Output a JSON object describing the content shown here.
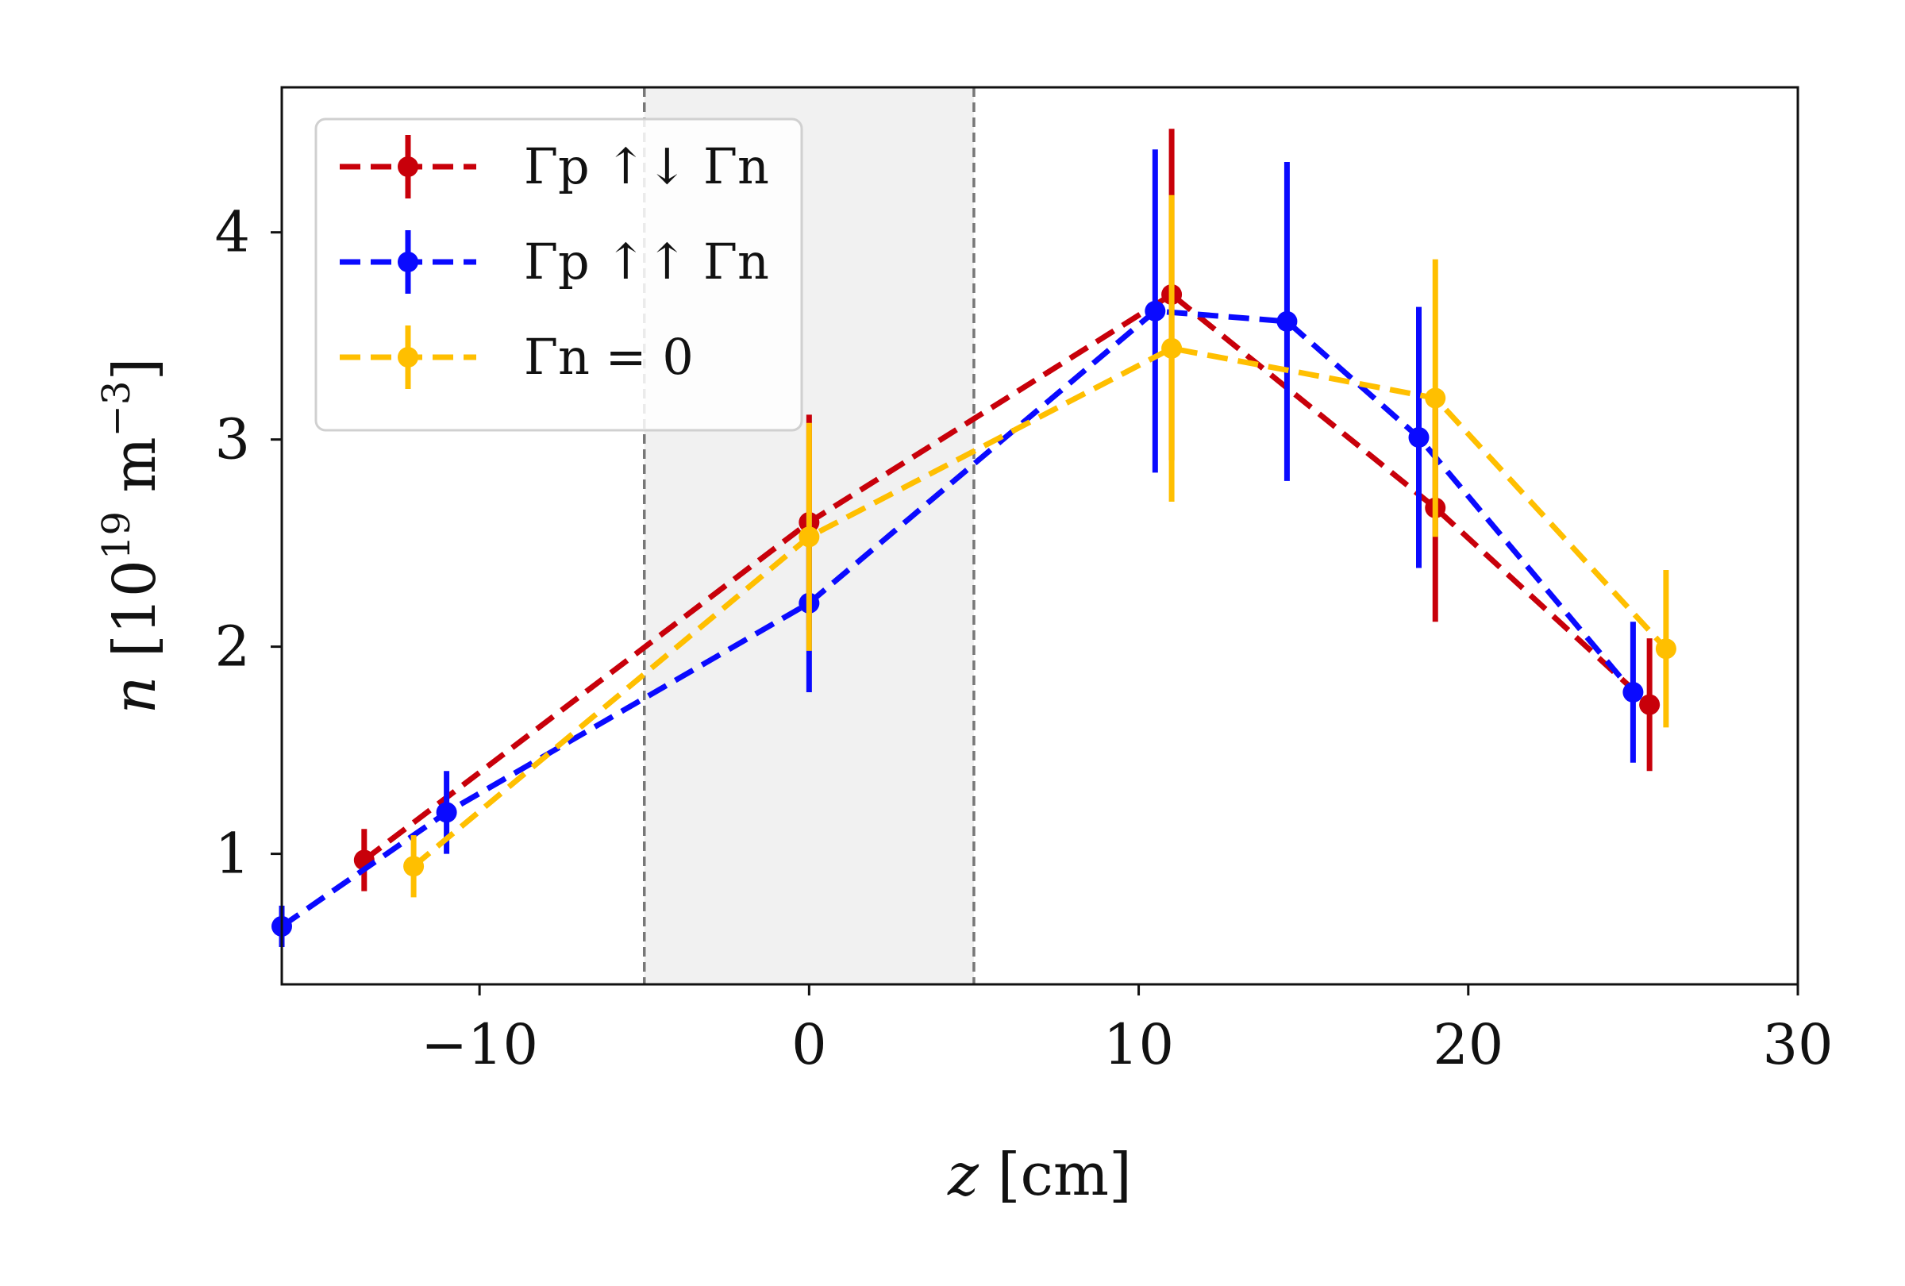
{
  "chart_data": {
    "type": "line",
    "title": "",
    "xlabel": "z [cm]",
    "ylabel": "n [10^19 m^-3]",
    "xlim": [
      -16,
      30
    ],
    "ylim": [
      0.37,
      4.7
    ],
    "xticks": [
      -10,
      0,
      10,
      20,
      30
    ],
    "xtick_labels": [
      "−10",
      "0",
      "10",
      "20",
      "30"
    ],
    "yticks": [
      1,
      2,
      3,
      4
    ],
    "ytick_labels": [
      "1",
      "2",
      "3",
      "4"
    ],
    "shaded_region": {
      "x_from": -5,
      "x_to": 5,
      "fill": "#f1f1f1",
      "edge_color": "#777777",
      "edge_style": "dashed"
    },
    "legend_position": "top-left",
    "grid": false,
    "series": [
      {
        "name": "Γ_p ↑↓ Γ_n",
        "legend_label": "Γp ↑↓ Γn",
        "color": "#c8000a",
        "points": [
          {
            "x": -13.5,
            "y": 0.97,
            "err": 0.15
          },
          {
            "x": 0,
            "y": 2.6,
            "err": 0.52
          },
          {
            "x": 11,
            "y": 3.7,
            "err": 0.8
          },
          {
            "x": 19,
            "y": 2.67,
            "err": 0.55
          },
          {
            "x": 25.5,
            "y": 1.72,
            "err": 0.32
          }
        ]
      },
      {
        "name": "Γ_p ↑↑ Γ_n",
        "legend_label": "Γp ↑↑ Γn",
        "color": "#0a0aff",
        "points": [
          {
            "x": -16,
            "y": 0.65,
            "err": 0.1
          },
          {
            "x": -11,
            "y": 1.2,
            "err": 0.2
          },
          {
            "x": 0,
            "y": 2.21,
            "err": 0.43
          },
          {
            "x": 10.5,
            "y": 3.62,
            "err": 0.78
          },
          {
            "x": 14.5,
            "y": 3.57,
            "err": 0.77
          },
          {
            "x": 18.5,
            "y": 3.01,
            "err": 0.63
          },
          {
            "x": 25,
            "y": 1.78,
            "err": 0.34
          }
        ]
      },
      {
        "name": "Γ_n = 0",
        "legend_label": "Γn = 0",
        "color": "#ffbf00",
        "points": [
          {
            "x": -12,
            "y": 0.94,
            "err": 0.15
          },
          {
            "x": 0,
            "y": 2.53,
            "err": 0.55
          },
          {
            "x": 11,
            "y": 3.44,
            "err": 0.74
          },
          {
            "x": 19,
            "y": 3.2,
            "err": 0.67
          },
          {
            "x": 26,
            "y": 1.99,
            "err": 0.38
          }
        ]
      }
    ]
  }
}
